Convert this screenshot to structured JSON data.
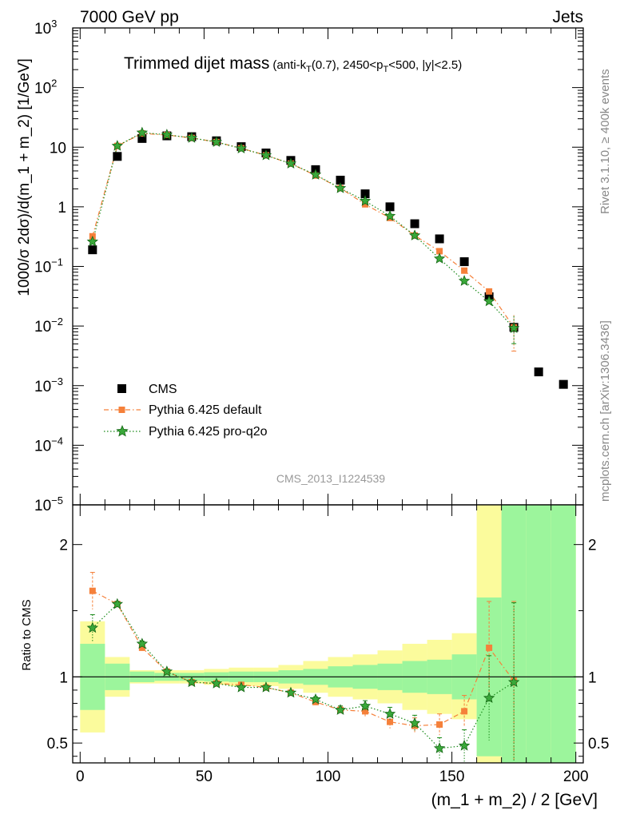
{
  "header": {
    "left": "7000 GeV pp",
    "right": "Jets",
    "rivet": "Rivet 3.1.10, ≥ 400k events",
    "mcplots": "mcplots.cern.ch [arXiv:1306.3436]",
    "analysis": "CMS_2013_I1224539"
  },
  "chart_data": [
    {
      "type": "scatter",
      "panel": "main",
      "title": "Trimmed dijet mass",
      "subtitle_parts": [
        "(anti-k",
        "T",
        "(0.7), 2450<p",
        "T",
        "<500, |y|<2.5)"
      ],
      "ylabel": "1000/σ 2dσ)/d(m_1 + m_2) [1/GeV]",
      "xlim": [
        -3,
        203
      ],
      "ylim": [
        1e-05,
        1000
      ],
      "yscale": "log",
      "y_ticks": [
        {
          "v": 1e-05,
          "m": "10",
          "e": "−5"
        },
        {
          "v": 0.0001,
          "m": "10",
          "e": "−4"
        },
        {
          "v": 0.001,
          "m": "10",
          "e": "−3"
        },
        {
          "v": 0.01,
          "m": "10",
          "e": "−2"
        },
        {
          "v": 0.1,
          "m": "10",
          "e": "−1"
        },
        {
          "v": 1,
          "m": "1",
          "e": ""
        },
        {
          "v": 10,
          "m": "10",
          "e": ""
        },
        {
          "v": 100,
          "m": "10",
          "e": "2"
        },
        {
          "v": 1000,
          "m": "10",
          "e": "3"
        }
      ],
      "legend_position": "lower-left",
      "series": [
        {
          "name": "CMS",
          "color": "#000000",
          "marker": "square",
          "x": [
            5,
            15,
            25,
            35,
            45,
            55,
            65,
            75,
            85,
            95,
            105,
            115,
            125,
            135,
            145,
            155,
            165,
            175,
            185,
            195
          ],
          "y": [
            0.19,
            7.0,
            14.0,
            15.5,
            15.0,
            12.8,
            10.2,
            8.0,
            6.0,
            4.2,
            2.8,
            1.65,
            1.0,
            0.52,
            0.29,
            0.12,
            0.031,
            0.0095,
            0.0017,
            0.00105
          ]
        },
        {
          "name": "Pythia 6.425 default",
          "color": "#f5803a",
          "marker": "square",
          "dash": "dashdot",
          "x": [
            5,
            15,
            25,
            35,
            45,
            55,
            65,
            75,
            85,
            95,
            105,
            115,
            125,
            135,
            145,
            155,
            165,
            175
          ],
          "y": [
            0.32,
            10.5,
            17.0,
            16.0,
            14.3,
            12.2,
            9.6,
            7.3,
            5.3,
            3.35,
            2.05,
            1.1,
            0.65,
            0.33,
            0.18,
            0.085,
            0.038,
            0.0095
          ]
        },
        {
          "name": "Pythia 6.425 pro-q2o",
          "color": "#1a8a1a",
          "marker": "star",
          "dash": "dotted",
          "x": [
            5,
            15,
            25,
            35,
            45,
            55,
            65,
            75,
            85,
            95,
            105,
            115,
            125,
            135,
            145,
            155,
            165,
            175
          ],
          "y": [
            0.26,
            10.5,
            17.5,
            16.2,
            14.3,
            12.2,
            9.5,
            7.3,
            5.3,
            3.45,
            2.05,
            1.25,
            0.7,
            0.33,
            0.135,
            0.057,
            0.026,
            0.0092
          ]
        }
      ]
    },
    {
      "type": "scatter",
      "panel": "ratio",
      "ylabel": "Ratio to CMS",
      "xlabel": "(m_1 + m_2) / 2 [GeV]",
      "xlim": [
        -3,
        203
      ],
      "ylim": [
        0.35,
        2.3
      ],
      "x_ticks": [
        0,
        50,
        100,
        150,
        200
      ],
      "y_ticks": [
        0.5,
        1,
        2
      ],
      "bands": {
        "x_edges": [
          0,
          10,
          20,
          30,
          40,
          50,
          60,
          70,
          80,
          90,
          100,
          110,
          120,
          130,
          140,
          150,
          160,
          170,
          180,
          190,
          200
        ],
        "inner": [
          [
            0.75,
            1.25
          ],
          [
            0.9,
            1.1
          ],
          [
            0.96,
            1.04
          ],
          [
            0.97,
            1.03
          ],
          [
            0.97,
            1.03
          ],
          [
            0.965,
            1.035
          ],
          [
            0.96,
            1.04
          ],
          [
            0.96,
            1.04
          ],
          [
            0.95,
            1.05
          ],
          [
            0.94,
            1.06
          ],
          [
            0.92,
            1.08
          ],
          [
            0.91,
            1.09
          ],
          [
            0.9,
            1.1
          ],
          [
            0.88,
            1.12
          ],
          [
            0.87,
            1.13
          ],
          [
            0.83,
            1.17
          ],
          [
            0.4,
            1.6
          ],
          [
            0.3,
            2.4
          ],
          [
            0.3,
            2.4
          ],
          [
            0.3,
            2.3
          ]
        ],
        "outer": [
          [
            0.58,
            1.42
          ],
          [
            0.85,
            1.15
          ],
          [
            0.95,
            1.05
          ],
          [
            0.95,
            1.05
          ],
          [
            0.95,
            1.05
          ],
          [
            0.94,
            1.06
          ],
          [
            0.93,
            1.07
          ],
          [
            0.93,
            1.07
          ],
          [
            0.91,
            1.09
          ],
          [
            0.88,
            1.12
          ],
          [
            0.85,
            1.15
          ],
          [
            0.83,
            1.17
          ],
          [
            0.8,
            1.2
          ],
          [
            0.75,
            1.25
          ],
          [
            0.72,
            1.28
          ],
          [
            0.68,
            1.33
          ],
          [
            0.3,
            2.4
          ],
          [
            0.3,
            2.4
          ],
          [
            0.3,
            2.4
          ],
          [
            0.3,
            2.4
          ]
        ],
        "inner_color": "#9cf59c",
        "outer_color": "#fbfb9c"
      },
      "series": [
        {
          "name": "Pythia 6.425 default",
          "color": "#f5803a",
          "marker": "square",
          "dash": "dashdot",
          "x": [
            5,
            15,
            25,
            35,
            45,
            55,
            65,
            75,
            85,
            95,
            105,
            115,
            125,
            135,
            145,
            155,
            165,
            175
          ],
          "y": [
            1.65,
            1.55,
            1.22,
            1.04,
            0.96,
            0.95,
            0.94,
            0.92,
            0.88,
            0.81,
            0.75,
            0.74,
            0.66,
            0.63,
            0.64,
            0.74,
            1.22,
            0.97
          ],
          "err": [
            0.14,
            0.02,
            0.02,
            0.01,
            0.01,
            0.01,
            0.01,
            0.01,
            0.01,
            0.02,
            0.03,
            0.04,
            0.05,
            0.06,
            0.08,
            0.12,
            0.35,
            0.6
          ]
        },
        {
          "name": "Pythia 6.425 pro-q2o",
          "color": "#1a8a1a",
          "marker": "star",
          "dash": "dotted",
          "x": [
            5,
            15,
            25,
            35,
            45,
            55,
            65,
            75,
            85,
            95,
            105,
            115,
            125,
            135,
            145,
            155,
            165,
            175
          ],
          "y": [
            1.37,
            1.55,
            1.25,
            1.04,
            0.96,
            0.95,
            0.92,
            0.92,
            0.88,
            0.83,
            0.75,
            0.78,
            0.72,
            0.65,
            0.46,
            0.48,
            0.84,
            0.96
          ],
          "err": [
            0.1,
            0.02,
            0.02,
            0.01,
            0.01,
            0.01,
            0.01,
            0.01,
            0.01,
            0.02,
            0.03,
            0.04,
            0.05,
            0.06,
            0.08,
            0.12,
            0.32,
            0.6
          ]
        }
      ]
    }
  ]
}
